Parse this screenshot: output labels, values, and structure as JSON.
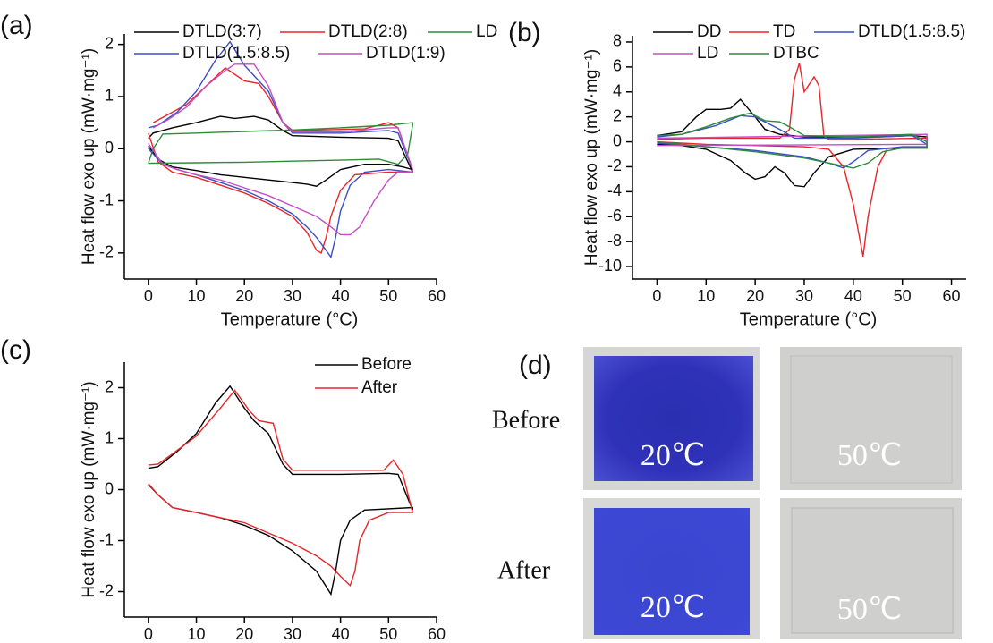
{
  "chart_data": [
    {
      "type": "line",
      "panel_label": "(a)",
      "xlabel": "Temperature (°C)",
      "ylabel": "Heat flow exo up (mW·mg⁻¹)",
      "xlim": [
        -5,
        60
      ],
      "ylim": [
        -2.5,
        2.2
      ],
      "xticks": [
        0,
        10,
        20,
        30,
        40,
        50,
        60
      ],
      "yticks": [
        -2,
        -1,
        0,
        1,
        2
      ],
      "series": [
        {
          "name": "DTLD(3:7)",
          "color": "#000000",
          "x": [
            0,
            2,
            5,
            10,
            15,
            20,
            25,
            30,
            33,
            35,
            37,
            40,
            45,
            50,
            53,
            55,
            55,
            52,
            50,
            40,
            30,
            28,
            25,
            22,
            18,
            15,
            10,
            5,
            1,
            0
          ],
          "values": [
            0.05,
            -0.2,
            -0.35,
            -0.42,
            -0.5,
            -0.55,
            -0.6,
            -0.65,
            -0.68,
            -0.72,
            -0.6,
            -0.4,
            -0.3,
            -0.3,
            -0.35,
            -0.4,
            -0.45,
            0.15,
            0.2,
            0.22,
            0.25,
            0.35,
            0.55,
            0.62,
            0.58,
            0.62,
            0.5,
            0.4,
            0.3,
            0.2
          ]
        },
        {
          "name": "DTLD(2:8)",
          "color": "#e8262a",
          "x": [
            0,
            2,
            5,
            10,
            15,
            20,
            25,
            30,
            33,
            35,
            36,
            37,
            38,
            40,
            43,
            50,
            55,
            55,
            52,
            50,
            45,
            30,
            28,
            25,
            23,
            20,
            16,
            12,
            8,
            4,
            1
          ],
          "values": [
            0.3,
            -0.25,
            -0.45,
            -0.55,
            -0.7,
            -0.85,
            -1.05,
            -1.3,
            -1.6,
            -1.95,
            -2.0,
            -1.7,
            -1.3,
            -0.8,
            -0.5,
            -0.45,
            -0.45,
            -0.4,
            0.4,
            0.5,
            0.38,
            0.35,
            0.5,
            1.0,
            1.25,
            1.3,
            1.55,
            1.2,
            0.85,
            0.65,
            0.5
          ]
        },
        {
          "name": "LD",
          "color": "#2e8b3a",
          "x": [
            0,
            10,
            20,
            30,
            40,
            48,
            52,
            54,
            55,
            55,
            50,
            40,
            30,
            20,
            10,
            3,
            1,
            0
          ],
          "values": [
            -0.28,
            -0.27,
            -0.26,
            -0.24,
            -0.22,
            -0.2,
            -0.3,
            -0.1,
            0.45,
            0.5,
            0.45,
            0.4,
            0.36,
            0.33,
            0.3,
            0.28,
            0.0,
            -0.28
          ]
        },
        {
          "name": "DTLD(1.5:8.5)",
          "color": "#3a4fc4",
          "x": [
            0,
            3,
            6,
            10,
            15,
            20,
            25,
            30,
            33,
            35,
            37,
            38,
            39,
            40,
            42,
            45,
            50,
            55,
            55,
            52,
            50,
            40,
            30,
            28,
            25,
            22,
            20,
            17,
            14,
            10,
            6,
            2,
            0
          ],
          "values": [
            0,
            -0.3,
            -0.4,
            -0.5,
            -0.65,
            -0.8,
            -1.0,
            -1.25,
            -1.5,
            -1.7,
            -1.95,
            -2.08,
            -1.7,
            -1.2,
            -0.7,
            -0.45,
            -0.4,
            -0.45,
            -0.4,
            0.3,
            0.35,
            0.3,
            0.3,
            0.5,
            1.1,
            1.4,
            1.6,
            2.05,
            1.7,
            1.1,
            0.7,
            0.45,
            0.4
          ]
        },
        {
          "name": "DTLD(1:9)",
          "color": "#c44ec4",
          "x": [
            0,
            3,
            6,
            10,
            15,
            20,
            25,
            30,
            35,
            38,
            40,
            42,
            44,
            47,
            50,
            52,
            55,
            55,
            52,
            50,
            40,
            30,
            28,
            25,
            22,
            18,
            16,
            12,
            8,
            4,
            1
          ],
          "values": [
            0.1,
            -0.3,
            -0.4,
            -0.5,
            -0.6,
            -0.75,
            -0.9,
            -1.1,
            -1.3,
            -1.5,
            -1.65,
            -1.65,
            -1.5,
            -1.0,
            -0.6,
            -0.45,
            -0.45,
            -0.4,
            0.4,
            0.4,
            0.32,
            0.32,
            0.5,
            1.2,
            1.62,
            1.62,
            1.5,
            1.2,
            0.8,
            0.55,
            0.4
          ]
        }
      ]
    },
    {
      "type": "line",
      "panel_label": "(b)",
      "xlabel": "Temperature (°C)",
      "ylabel": "Heat flow exo up (mW·mg⁻¹)",
      "xlim": [
        -5,
        63
      ],
      "ylim": [
        -11,
        8.5
      ],
      "xticks": [
        0,
        10,
        20,
        30,
        40,
        50,
        60
      ],
      "yticks": [
        -10,
        -8,
        -6,
        -4,
        -2,
        0,
        2,
        4,
        6,
        8
      ],
      "series": [
        {
          "name": "DD",
          "color": "#000000",
          "x": [
            0,
            5,
            10,
            15,
            18,
            20,
            22,
            24,
            26,
            28,
            30,
            32,
            35,
            40,
            50,
            55,
            55,
            52,
            45,
            30,
            25,
            22,
            20,
            17,
            15,
            13,
            10,
            8,
            5,
            0
          ],
          "values": [
            -0.2,
            -0.3,
            -0.6,
            -1.5,
            -2.5,
            -3.0,
            -2.8,
            -2.0,
            -2.5,
            -3.5,
            -3.6,
            -2.5,
            -1.2,
            -0.6,
            -0.5,
            -0.5,
            0.4,
            0.5,
            0.4,
            0.4,
            0.6,
            1.0,
            2.0,
            3.4,
            2.7,
            2.6,
            2.6,
            2.0,
            0.8,
            0.5
          ]
        },
        {
          "name": "TD",
          "color": "#e8262a",
          "x": [
            0,
            10,
            20,
            30,
            35,
            38,
            40,
            42,
            43,
            45,
            47,
            55,
            55,
            40,
            35,
            34,
            33,
            32,
            30,
            29,
            28,
            27,
            25,
            10,
            0
          ],
          "values": [
            0,
            -0.2,
            -0.3,
            -0.4,
            -0.6,
            -2.0,
            -5.0,
            -9.2,
            -6.0,
            -2.0,
            -0.5,
            -0.4,
            0.3,
            0.2,
            0.2,
            0.5,
            4.5,
            5.2,
            4.0,
            6.3,
            5.0,
            1.0,
            0.3,
            0.3,
            0.2
          ]
        },
        {
          "name": "DTLD(1.5:8.5)",
          "color": "#3a4fc4",
          "x": [
            0,
            10,
            20,
            30,
            35,
            38,
            40,
            43,
            50,
            55,
            55,
            52,
            40,
            28,
            25,
            20,
            17,
            12,
            5,
            0
          ],
          "values": [
            -0.1,
            -0.4,
            -0.7,
            -1.2,
            -1.7,
            -2.1,
            -1.6,
            -0.7,
            -0.4,
            -0.4,
            -0.2,
            0.5,
            0.3,
            0.3,
            1.0,
            2.0,
            2.1,
            1.3,
            0.6,
            0.4
          ]
        },
        {
          "name": "LD",
          "color": "#c44ec4",
          "x": [
            0,
            55,
            55,
            0
          ],
          "values": [
            -0.3,
            -0.2,
            0.6,
            0.3
          ]
        },
        {
          "name": "DTBC",
          "color": "#2e8b3a",
          "x": [
            0,
            10,
            20,
            30,
            35,
            40,
            43,
            46,
            50,
            55,
            55,
            52,
            40,
            30,
            27,
            25,
            22,
            19,
            15,
            10,
            5,
            0
          ],
          "values": [
            0,
            -0.4,
            -0.8,
            -1.3,
            -1.7,
            -2.1,
            -1.7,
            -0.8,
            -0.5,
            -0.5,
            0,
            0.6,
            0.4,
            0.5,
            1.2,
            1.6,
            1.7,
            2.3,
            1.9,
            1.2,
            0.6,
            0.5
          ]
        }
      ]
    },
    {
      "type": "line",
      "panel_label": "(c)",
      "xlabel": "Temperature (°C)",
      "ylabel": "Heat flow exo up (mW·mg⁻¹)",
      "xlim": [
        -5,
        60
      ],
      "ylim": [
        -2.5,
        2.5
      ],
      "xticks": [
        0,
        10,
        20,
        30,
        40,
        50,
        60
      ],
      "yticks": [
        -2,
        -1,
        0,
        1,
        2
      ],
      "series": [
        {
          "name": "Before",
          "color": "#000000",
          "x": [
            0,
            2,
            5,
            10,
            15,
            20,
            25,
            30,
            35,
            37,
            38,
            39,
            40,
            42,
            45,
            55,
            55,
            52,
            50,
            40,
            30,
            28,
            25,
            22,
            20,
            17,
            14,
            10,
            6,
            2,
            0
          ],
          "values": [
            0.1,
            -0.1,
            -0.35,
            -0.45,
            -0.55,
            -0.7,
            -0.9,
            -1.2,
            -1.6,
            -1.9,
            -2.05,
            -1.6,
            -1.0,
            -0.6,
            -0.4,
            -0.35,
            -0.4,
            0.3,
            0.32,
            0.3,
            0.3,
            0.5,
            1.1,
            1.35,
            1.6,
            2.03,
            1.7,
            1.1,
            0.75,
            0.45,
            0.42
          ]
        },
        {
          "name": "After",
          "color": "#e8262a",
          "x": [
            0,
            2,
            5,
            10,
            15,
            20,
            25,
            30,
            35,
            38,
            40,
            42,
            43,
            44,
            46,
            50,
            55,
            55,
            53,
            51,
            49,
            40,
            30,
            28,
            26,
            23,
            21,
            18,
            15,
            10,
            5,
            2,
            0
          ],
          "values": [
            0.12,
            -0.1,
            -0.35,
            -0.45,
            -0.55,
            -0.65,
            -0.85,
            -1.05,
            -1.3,
            -1.5,
            -1.7,
            -1.88,
            -1.6,
            -1.0,
            -0.6,
            -0.45,
            -0.45,
            -0.45,
            0.3,
            0.58,
            0.38,
            0.38,
            0.38,
            0.6,
            1.3,
            1.35,
            1.55,
            1.95,
            1.6,
            1.05,
            0.7,
            0.5,
            0.48
          ]
        }
      ]
    }
  ],
  "panel_d": {
    "panel_label": "(d)",
    "row_labels": [
      "Before",
      "After"
    ],
    "temperature_labels": [
      "20℃",
      "50℃"
    ]
  }
}
